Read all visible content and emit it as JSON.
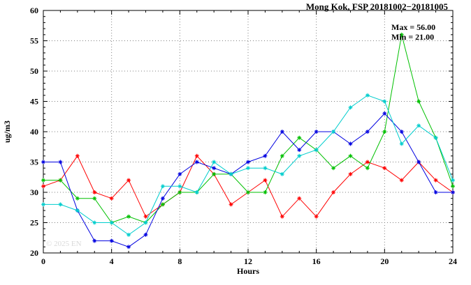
{
  "watermark": "© 2025 EN",
  "chart_data": {
    "type": "line",
    "title": "Mong Kok, FSP 20181002−20181005",
    "xlabel": "Hours",
    "ylabel": "ug/m3",
    "xlim": [
      0,
      24
    ],
    "ylim": [
      20,
      60
    ],
    "x_major_ticks": [
      0,
      4,
      8,
      12,
      16,
      20,
      24
    ],
    "y_major_ticks": [
      20,
      25,
      30,
      35,
      40,
      45,
      50,
      55,
      60
    ],
    "grid": true,
    "legend": "none",
    "max_label": "Max = 56.00",
    "min_label": "Min = 21.00",
    "x": [
      0,
      1,
      2,
      3,
      4,
      5,
      6,
      7,
      8,
      9,
      10,
      11,
      12,
      13,
      14,
      15,
      16,
      17,
      18,
      19,
      20,
      21,
      22,
      23,
      24
    ],
    "series": [
      {
        "name": "red-series",
        "color": "#ff0000",
        "values": [
          31,
          32,
          36,
          30,
          29,
          32,
          26,
          28,
          30,
          36,
          33,
          28,
          30,
          32,
          26,
          29,
          26,
          30,
          33,
          35,
          34,
          32,
          35,
          32,
          30
        ]
      },
      {
        "name": "green-series",
        "color": "#00c000",
        "values": [
          32,
          32,
          29,
          29,
          25,
          26,
          25,
          28,
          30,
          30,
          33,
          33,
          30,
          30,
          36,
          39,
          37,
          34,
          36,
          34,
          40,
          56,
          45,
          39,
          31
        ]
      },
      {
        "name": "blue-series",
        "color": "#0000e0",
        "values": [
          35,
          35,
          27,
          22,
          22,
          21,
          23,
          29,
          33,
          35,
          34,
          33,
          35,
          36,
          40,
          37,
          40,
          40,
          38,
          40,
          43,
          40,
          35,
          30,
          30
        ]
      },
      {
        "name": "cyan-series",
        "color": "#00cdcd",
        "values": [
          28,
          28,
          27,
          25,
          25,
          23,
          25,
          31,
          31,
          30,
          35,
          33,
          34,
          34,
          33,
          36,
          37,
          40,
          44,
          46,
          45,
          38,
          41,
          39,
          32
        ]
      }
    ]
  }
}
